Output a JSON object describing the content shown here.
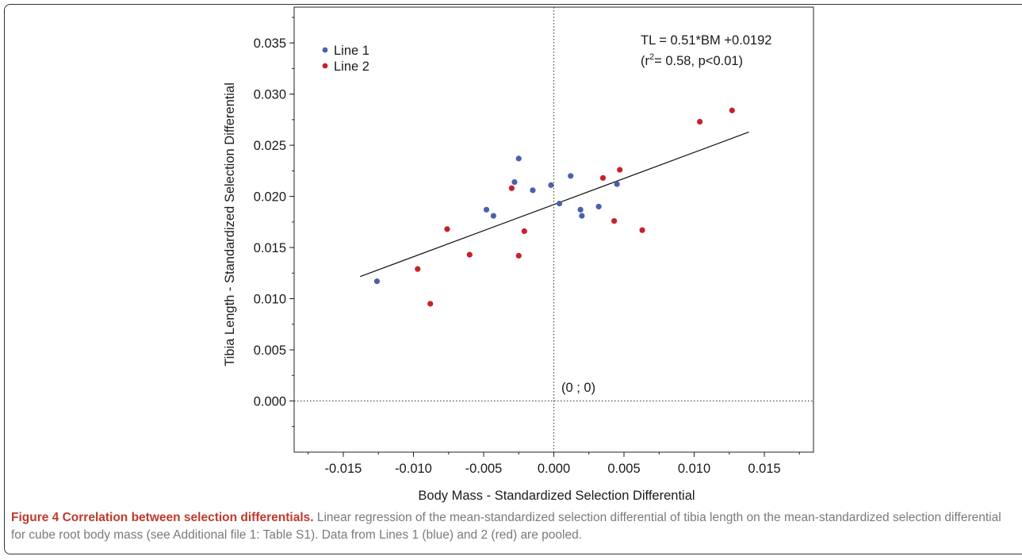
{
  "chart_data": {
    "type": "scatter",
    "xlabel": "Body Mass - Standardized Selection Differential",
    "ylabel": "Tibia Length - Standardized Selection Differential",
    "xlim": [
      -0.0185,
      0.0185
    ],
    "ylim": [
      -0.005,
      0.0385
    ],
    "xticks": [
      "-0.015",
      "-0.010",
      "-0.005",
      "0.000",
      "0.005",
      "0.010",
      "0.015"
    ],
    "xtick_values": [
      -0.015,
      -0.01,
      -0.005,
      0.0,
      0.005,
      0.01,
      0.015
    ],
    "yticks": [
      "0.000",
      "0.005",
      "0.010",
      "0.015",
      "0.020",
      "0.025",
      "0.030",
      "0.035"
    ],
    "ytick_values": [
      0.0,
      0.005,
      0.01,
      0.015,
      0.02,
      0.025,
      0.03,
      0.035
    ],
    "legend_position": "top-left",
    "series": [
      {
        "name": "Line 1",
        "color": "#4a62a9",
        "points": [
          [
            -0.0126,
            0.0117
          ],
          [
            -0.0048,
            0.0187
          ],
          [
            -0.0043,
            0.0181
          ],
          [
            -0.0028,
            0.0214
          ],
          [
            -0.0025,
            0.0237
          ],
          [
            -0.0015,
            0.0206
          ],
          [
            -0.0002,
            0.0211
          ],
          [
            0.0004,
            0.0193
          ],
          [
            0.0012,
            0.022
          ],
          [
            0.0019,
            0.0187
          ],
          [
            0.002,
            0.0181
          ],
          [
            0.0032,
            0.019
          ],
          [
            0.0045,
            0.0212
          ]
        ]
      },
      {
        "name": "Line 2",
        "color": "#c8202b",
        "points": [
          [
            -0.0097,
            0.0129
          ],
          [
            -0.0088,
            0.0095
          ],
          [
            -0.0076,
            0.0168
          ],
          [
            -0.006,
            0.0143
          ],
          [
            -0.003,
            0.0208
          ],
          [
            -0.0025,
            0.0142
          ],
          [
            -0.0021,
            0.0166
          ],
          [
            0.0035,
            0.0218
          ],
          [
            0.0043,
            0.0176
          ],
          [
            0.0047,
            0.0226
          ],
          [
            0.0063,
            0.0167
          ],
          [
            0.0104,
            0.0273
          ],
          [
            0.0127,
            0.0284
          ]
        ]
      }
    ],
    "regression": {
      "x_range": [
        -0.0138,
        0.0139
      ],
      "slope": 0.51,
      "intercept": 0.0192
    },
    "annotations": {
      "equation": "TL = 0.51*BM +0.0192",
      "r2_prefix": "(r",
      "r2_sup": "2",
      "r2_rest": "= 0.58, p<0.01)",
      "origin_label": "(0 ; 0)"
    }
  },
  "caption": {
    "title": "Figure 4 Correlation between selection differentials.",
    "text": " Linear regression of the mean-standardized selection differential of tibia length on the mean-standardized selection differential for cube root body mass (see Additional file 1: Table S1). Data from Lines 1 (blue) and 2 (red) are pooled."
  }
}
